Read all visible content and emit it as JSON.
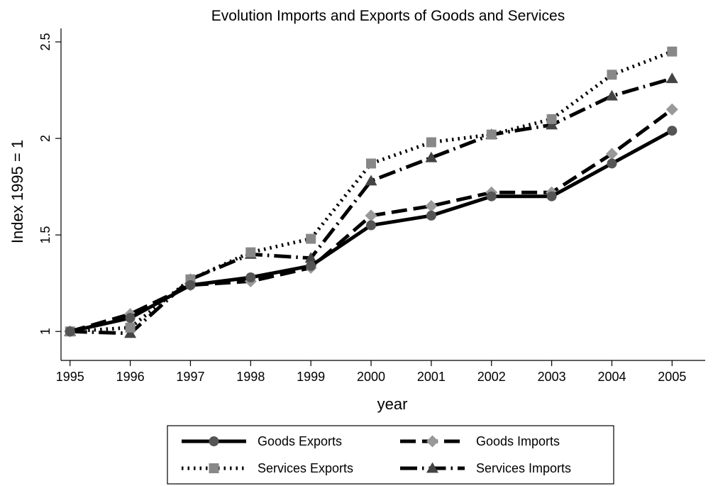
{
  "chart_data": {
    "type": "line",
    "title": "Evolution Imports and Exports of Goods and Services",
    "xlabel": "year",
    "ylabel": "Index 1995 = 1",
    "x": [
      1995,
      1996,
      1997,
      1998,
      1999,
      2000,
      2001,
      2002,
      2003,
      2004,
      2005
    ],
    "x_tick_labels": [
      "1995",
      "1996",
      "1997",
      "1998",
      "1999",
      "2000",
      "2001",
      "2002",
      "2003",
      "2004",
      "2005"
    ],
    "y_ticks": [
      1,
      1.5,
      2,
      2.5
    ],
    "y_tick_labels": [
      "1",
      "1.5",
      "2",
      "2.5"
    ],
    "ylim": [
      0.85,
      2.57
    ],
    "xlim": [
      1994.85,
      2005.55
    ],
    "grid": false,
    "legend_position": "bottom",
    "series": [
      {
        "name": "Goods Exports",
        "values": [
          1.0,
          1.07,
          1.24,
          1.28,
          1.34,
          1.55,
          1.6,
          1.7,
          1.7,
          1.87,
          2.04
        ],
        "line_style": "solid",
        "marker": "circle",
        "marker_color": "#555555"
      },
      {
        "name": "Goods Imports",
        "values": [
          1.0,
          1.09,
          1.24,
          1.26,
          1.33,
          1.6,
          1.65,
          1.72,
          1.72,
          1.92,
          2.15
        ],
        "line_style": "dashed",
        "marker": "diamond",
        "marker_color": "#999999"
      },
      {
        "name": "Services Exports",
        "values": [
          1.0,
          1.02,
          1.27,
          1.41,
          1.48,
          1.87,
          1.98,
          2.02,
          2.1,
          2.33,
          2.45
        ],
        "line_style": "dotted",
        "marker": "square",
        "marker_color": "#888888"
      },
      {
        "name": "Services Imports",
        "values": [
          1.0,
          0.99,
          1.27,
          1.4,
          1.38,
          1.78,
          1.9,
          2.02,
          2.07,
          2.22,
          2.31
        ],
        "line_style": "dash-dot",
        "marker": "triangle",
        "marker_color": "#444444"
      }
    ]
  }
}
